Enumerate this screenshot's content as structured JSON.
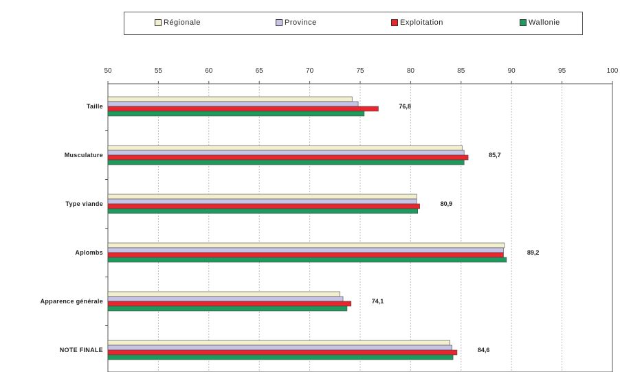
{
  "chart_data": {
    "type": "bar",
    "orientation": "horizontal",
    "categories": [
      "Taille",
      "Musculature",
      "Type viande",
      "Aplombs",
      "Apparence générale",
      "NOTE FINALE"
    ],
    "series": [
      {
        "name": "Régionale",
        "color": "#f2efcf",
        "values": [
          74.2,
          85.1,
          80.6,
          89.3,
          73.0,
          83.9
        ]
      },
      {
        "name": "Province",
        "color": "#c7c3e6",
        "values": [
          74.8,
          85.3,
          80.6,
          89.2,
          73.3,
          84.1
        ]
      },
      {
        "name": "Exploitation",
        "color": "#e8262e",
        "values": [
          76.8,
          85.7,
          80.9,
          89.2,
          74.1,
          84.6
        ]
      },
      {
        "name": "Wallonie",
        "color": "#1f9a5e",
        "values": [
          75.4,
          85.3,
          80.7,
          89.5,
          73.7,
          84.2
        ]
      }
    ],
    "value_labels": [
      "76,8",
      "85,7",
      "80,9",
      "89,2",
      "74,1",
      "84,6"
    ],
    "xlim": [
      50,
      100
    ],
    "xticks": [
      "50",
      "55",
      "60",
      "65",
      "70",
      "75",
      "80",
      "85",
      "90",
      "95",
      "100"
    ],
    "grid": true,
    "legend_position": "top",
    "title": "",
    "xlabel": "",
    "ylabel": ""
  }
}
